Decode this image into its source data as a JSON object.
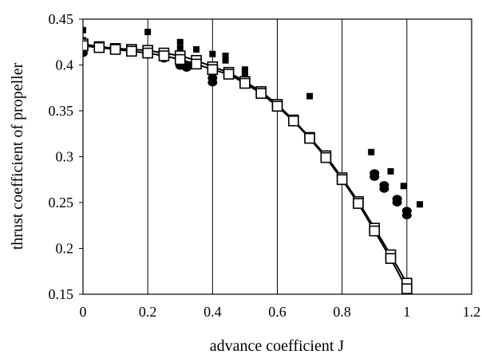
{
  "chart_data": {
    "type": "scatter",
    "title": "",
    "xlabel": "advance coefficient J",
    "ylabel": "thrust coefficient of propeller",
    "xlim": [
      0,
      1.2
    ],
    "ylim": [
      0.15,
      0.45
    ],
    "x_ticks": [
      "0",
      "0.2",
      "0.4",
      "0.6",
      "0.8",
      "1",
      "1.2"
    ],
    "y_ticks": [
      "0.15",
      "0.2",
      "0.25",
      "0.3",
      "0.35",
      "0.4",
      "0.45"
    ],
    "grid": "vertical",
    "legend": "none",
    "series": [
      {
        "marker": "filled-square-small",
        "color": "#000000",
        "points": [
          [
            0.0,
            0.438
          ],
          [
            0.0,
            0.427
          ],
          [
            0.0,
            0.424
          ],
          [
            0.2,
            0.436
          ],
          [
            0.3,
            0.425
          ],
          [
            0.3,
            0.418
          ],
          [
            0.35,
            0.417
          ],
          [
            0.4,
            0.412
          ],
          [
            0.44,
            0.41
          ],
          [
            0.44,
            0.405
          ],
          [
            0.5,
            0.395
          ],
          [
            0.5,
            0.39
          ],
          [
            0.7,
            0.366
          ],
          [
            0.89,
            0.305
          ],
          [
            0.95,
            0.284
          ],
          [
            0.99,
            0.268
          ],
          [
            1.04,
            0.248
          ]
        ]
      },
      {
        "marker": "filled-circle",
        "color": "#000000",
        "points": [
          [
            0.0,
            0.413
          ],
          [
            0.0,
            0.418
          ],
          [
            0.0,
            0.422
          ],
          [
            0.2,
            0.413
          ],
          [
            0.25,
            0.407
          ],
          [
            0.25,
            0.41
          ],
          [
            0.3,
            0.405
          ],
          [
            0.3,
            0.402
          ],
          [
            0.3,
            0.399
          ],
          [
            0.32,
            0.4
          ],
          [
            0.32,
            0.397
          ],
          [
            0.4,
            0.381
          ],
          [
            0.4,
            0.386
          ],
          [
            0.4,
            0.392
          ],
          [
            0.9,
            0.278
          ],
          [
            0.9,
            0.282
          ],
          [
            0.93,
            0.265
          ],
          [
            0.93,
            0.269
          ],
          [
            0.97,
            0.25
          ],
          [
            0.97,
            0.254
          ],
          [
            1.0,
            0.236
          ],
          [
            1.0,
            0.241
          ]
        ]
      },
      {
        "marker": "open-square",
        "color": "#000000",
        "line": true,
        "points": [
          [
            0.0,
            0.423
          ],
          [
            0.05,
            0.42
          ],
          [
            0.1,
            0.418
          ],
          [
            0.15,
            0.417
          ],
          [
            0.2,
            0.416
          ],
          [
            0.25,
            0.413
          ],
          [
            0.3,
            0.41
          ],
          [
            0.35,
            0.405
          ],
          [
            0.4,
            0.398
          ],
          [
            0.45,
            0.392
          ],
          [
            0.5,
            0.382
          ],
          [
            0.55,
            0.371
          ],
          [
            0.6,
            0.357
          ],
          [
            0.65,
            0.34
          ],
          [
            0.7,
            0.321
          ],
          [
            0.75,
            0.301
          ],
          [
            0.8,
            0.277
          ],
          [
            0.85,
            0.251
          ],
          [
            0.9,
            0.222
          ],
          [
            0.95,
            0.193
          ],
          [
            1.0,
            0.162
          ],
          [
            1.03,
            0.14
          ]
        ]
      },
      {
        "marker": "open-square",
        "color": "#000000",
        "line": true,
        "points": [
          [
            0.0,
            0.421
          ],
          [
            0.05,
            0.419
          ],
          [
            0.1,
            0.417
          ],
          [
            0.15,
            0.415
          ],
          [
            0.2,
            0.413
          ],
          [
            0.25,
            0.41
          ],
          [
            0.3,
            0.406
          ],
          [
            0.35,
            0.401
          ],
          [
            0.4,
            0.395
          ],
          [
            0.45,
            0.39
          ],
          [
            0.5,
            0.38
          ],
          [
            0.55,
            0.369
          ],
          [
            0.6,
            0.355
          ],
          [
            0.65,
            0.339
          ],
          [
            0.7,
            0.32
          ],
          [
            0.75,
            0.299
          ],
          [
            0.8,
            0.275
          ],
          [
            0.85,
            0.249
          ],
          [
            0.9,
            0.219
          ],
          [
            0.95,
            0.189
          ],
          [
            1.0,
            0.156
          ],
          [
            1.02,
            0.14
          ]
        ]
      }
    ]
  }
}
